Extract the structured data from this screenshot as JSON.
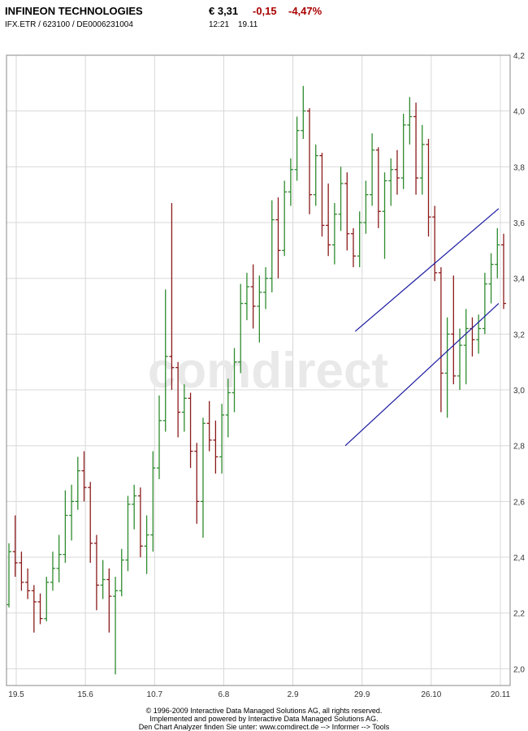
{
  "header": {
    "name": "INFINEON TECHNOLOGIES",
    "price": "€ 3,31",
    "change": "-0,15",
    "change_pct": "-4,47%",
    "identifiers": "IFX.ETR  /  623100  /  DE0006231004",
    "time": "12:21",
    "date": "19.11"
  },
  "watermark": "comdirect",
  "colors": {
    "up": "#2e8b2e",
    "down": "#8b1a1a",
    "negative_text": "#aa0000",
    "trendline": "#1a1aa0",
    "grid": "#d8d8d8"
  },
  "chart_data": {
    "type": "bar",
    "ohlc": true,
    "y_ticks": [
      "2,0",
      "2,2",
      "2,4",
      "2,6",
      "2,8",
      "3,0",
      "3,2",
      "3,4",
      "3,6",
      "3,8",
      "4,0",
      "4,2"
    ],
    "ylim": [
      1.94,
      4.2
    ],
    "x_tick_labels": [
      "19.5",
      "15.6",
      "10.7",
      "6.8",
      "2.9",
      "29.9",
      "26.10",
      "20.11"
    ],
    "grid": true,
    "series": [
      {
        "values": [
          {
            "open": 2.23,
            "high": 2.45,
            "low": 2.22,
            "close": 2.42
          },
          {
            "open": 2.42,
            "high": 2.55,
            "low": 2.33,
            "close": 2.38
          },
          {
            "open": 2.38,
            "high": 2.42,
            "low": 2.28,
            "close": 2.31
          },
          {
            "open": 2.31,
            "high": 2.36,
            "low": 2.25,
            "close": 2.28
          },
          {
            "open": 2.28,
            "high": 2.3,
            "low": 2.13,
            "close": 2.24
          },
          {
            "open": 2.24,
            "high": 2.27,
            "low": 2.16,
            "close": 2.18
          },
          {
            "open": 2.18,
            "high": 2.33,
            "low": 2.17,
            "close": 2.31
          },
          {
            "open": 2.31,
            "high": 2.42,
            "low": 2.28,
            "close": 2.36
          },
          {
            "open": 2.36,
            "high": 2.48,
            "low": 2.31,
            "close": 2.41
          },
          {
            "open": 2.41,
            "high": 2.64,
            "low": 2.38,
            "close": 2.55
          },
          {
            "open": 2.55,
            "high": 2.66,
            "low": 2.46,
            "close": 2.6
          },
          {
            "open": 2.6,
            "high": 2.76,
            "low": 2.57,
            "close": 2.71
          },
          {
            "open": 2.71,
            "high": 2.78,
            "low": 2.6,
            "close": 2.65
          },
          {
            "open": 2.65,
            "high": 2.67,
            "low": 2.38,
            "close": 2.45
          },
          {
            "open": 2.45,
            "high": 2.48,
            "low": 2.21,
            "close": 2.3
          },
          {
            "open": 2.3,
            "high": 2.39,
            "low": 2.25,
            "close": 2.32
          },
          {
            "open": 2.32,
            "high": 2.36,
            "low": 2.13,
            "close": 2.26
          },
          {
            "open": 2.26,
            "high": 2.33,
            "low": 1.98,
            "close": 2.28
          },
          {
            "open": 2.28,
            "high": 2.43,
            "low": 2.26,
            "close": 2.39
          },
          {
            "open": 2.39,
            "high": 2.62,
            "low": 2.35,
            "close": 2.59
          },
          {
            "open": 2.59,
            "high": 2.66,
            "low": 2.5,
            "close": 2.62
          },
          {
            "open": 2.62,
            "high": 2.65,
            "low": 2.4,
            "close": 2.44
          },
          {
            "open": 2.44,
            "high": 2.55,
            "low": 2.34,
            "close": 2.48
          },
          {
            "open": 2.48,
            "high": 2.78,
            "low": 2.42,
            "close": 2.72
          },
          {
            "open": 2.72,
            "high": 2.98,
            "low": 2.68,
            "close": 2.89
          },
          {
            "open": 2.89,
            "high": 3.36,
            "low": 2.85,
            "close": 3.12
          },
          {
            "open": 3.12,
            "high": 3.67,
            "low": 3.0,
            "close": 3.08
          },
          {
            "open": 3.08,
            "high": 3.1,
            "low": 2.83,
            "close": 2.92
          },
          {
            "open": 2.92,
            "high": 3.02,
            "low": 2.85,
            "close": 2.97
          },
          {
            "open": 2.97,
            "high": 2.99,
            "low": 2.72,
            "close": 2.78
          },
          {
            "open": 2.78,
            "high": 2.81,
            "low": 2.52,
            "close": 2.6
          },
          {
            "open": 2.6,
            "high": 2.9,
            "low": 2.47,
            "close": 2.88
          },
          {
            "open": 2.88,
            "high": 2.96,
            "low": 2.78,
            "close": 2.82
          },
          {
            "open": 2.82,
            "high": 2.89,
            "low": 2.7,
            "close": 2.76
          },
          {
            "open": 2.76,
            "high": 2.95,
            "low": 2.7,
            "close": 2.91
          },
          {
            "open": 2.91,
            "high": 3.04,
            "low": 2.83,
            "close": 2.99
          },
          {
            "open": 2.99,
            "high": 3.15,
            "low": 2.92,
            "close": 3.1
          },
          {
            "open": 3.1,
            "high": 3.38,
            "low": 3.06,
            "close": 3.31
          },
          {
            "open": 3.31,
            "high": 3.42,
            "low": 3.25,
            "close": 3.37
          },
          {
            "open": 3.37,
            "high": 3.45,
            "low": 3.22,
            "close": 3.3
          },
          {
            "open": 3.3,
            "high": 3.41,
            "low": 3.17,
            "close": 3.35
          },
          {
            "open": 3.35,
            "high": 3.44,
            "low": 3.29,
            "close": 3.4
          },
          {
            "open": 3.4,
            "high": 3.68,
            "low": 3.35,
            "close": 3.61
          },
          {
            "open": 3.61,
            "high": 3.69,
            "low": 3.4,
            "close": 3.5
          },
          {
            "open": 3.5,
            "high": 3.75,
            "low": 3.48,
            "close": 3.71
          },
          {
            "open": 3.71,
            "high": 3.83,
            "low": 3.66,
            "close": 3.79
          },
          {
            "open": 3.79,
            "high": 3.98,
            "low": 3.75,
            "close": 3.93
          },
          {
            "open": 3.93,
            "high": 4.09,
            "low": 3.9,
            "close": 4.0
          },
          {
            "open": 4.0,
            "high": 4.01,
            "low": 3.63,
            "close": 3.7
          },
          {
            "open": 3.7,
            "high": 3.88,
            "low": 3.66,
            "close": 3.84
          },
          {
            "open": 3.84,
            "high": 3.85,
            "low": 3.55,
            "close": 3.59
          },
          {
            "open": 3.59,
            "high": 3.74,
            "low": 3.48,
            "close": 3.52
          },
          {
            "open": 3.52,
            "high": 3.67,
            "low": 3.45,
            "close": 3.63
          },
          {
            "open": 3.63,
            "high": 3.8,
            "low": 3.57,
            "close": 3.74
          },
          {
            "open": 3.74,
            "high": 3.78,
            "low": 3.5,
            "close": 3.56
          },
          {
            "open": 3.56,
            "high": 3.58,
            "low": 3.44,
            "close": 3.48
          },
          {
            "open": 3.48,
            "high": 3.64,
            "low": 3.44,
            "close": 3.6
          },
          {
            "open": 3.6,
            "high": 3.75,
            "low": 3.56,
            "close": 3.7
          },
          {
            "open": 3.7,
            "high": 3.92,
            "low": 3.66,
            "close": 3.86
          },
          {
            "open": 3.86,
            "high": 3.87,
            "low": 3.58,
            "close": 3.64
          },
          {
            "open": 3.64,
            "high": 3.78,
            "low": 3.47,
            "close": 3.75
          },
          {
            "open": 3.75,
            "high": 3.83,
            "low": 3.66,
            "close": 3.79
          },
          {
            "open": 3.79,
            "high": 3.86,
            "low": 3.7,
            "close": 3.76
          },
          {
            "open": 3.76,
            "high": 3.99,
            "low": 3.72,
            "close": 3.95
          },
          {
            "open": 3.95,
            "high": 4.05,
            "low": 3.88,
            "close": 3.98
          },
          {
            "open": 3.98,
            "high": 4.03,
            "low": 3.7,
            "close": 3.76
          },
          {
            "open": 3.76,
            "high": 3.95,
            "low": 3.7,
            "close": 3.88
          },
          {
            "open": 3.88,
            "high": 3.9,
            "low": 3.55,
            "close": 3.62
          },
          {
            "open": 3.62,
            "high": 3.66,
            "low": 3.39,
            "close": 3.42
          },
          {
            "open": 3.42,
            "high": 3.44,
            "low": 2.92,
            "close": 3.06
          },
          {
            "open": 3.06,
            "high": 3.26,
            "low": 2.9,
            "close": 3.2
          },
          {
            "open": 3.2,
            "high": 3.41,
            "low": 3.02,
            "close": 3.05
          },
          {
            "open": 3.05,
            "high": 3.22,
            "low": 3.0,
            "close": 3.16
          },
          {
            "open": 3.16,
            "high": 3.29,
            "low": 3.02,
            "close": 3.22
          },
          {
            "open": 3.22,
            "high": 3.26,
            "low": 3.12,
            "close": 3.18
          },
          {
            "open": 3.18,
            "high": 3.27,
            "low": 3.13,
            "close": 3.22
          },
          {
            "open": 3.22,
            "high": 3.42,
            "low": 3.2,
            "close": 3.38
          },
          {
            "open": 3.38,
            "high": 3.49,
            "low": 3.31,
            "close": 3.45
          },
          {
            "open": 3.45,
            "high": 3.58,
            "low": 3.4,
            "close": 3.52
          },
          {
            "open": 3.52,
            "high": 3.56,
            "low": 3.29,
            "close": 3.31
          }
        ]
      }
    ],
    "trend_channel": {
      "upper": {
        "x": [
          0.7,
          0.99
        ],
        "y": [
          3.21,
          3.65
        ]
      },
      "lower": {
        "x": [
          0.68,
          0.99
        ],
        "y": [
          2.8,
          3.31
        ]
      }
    }
  },
  "footer": {
    "line1": "© 1996-2009 Interactive Data Managed Solutions AG, all rights reserved.",
    "line2": "Implemented and powered by Interactive Data Managed Solutions AG.",
    "line3": "Den Chart Analyzer finden Sie unter: www.comdirect.de --> Informer --> Tools"
  }
}
